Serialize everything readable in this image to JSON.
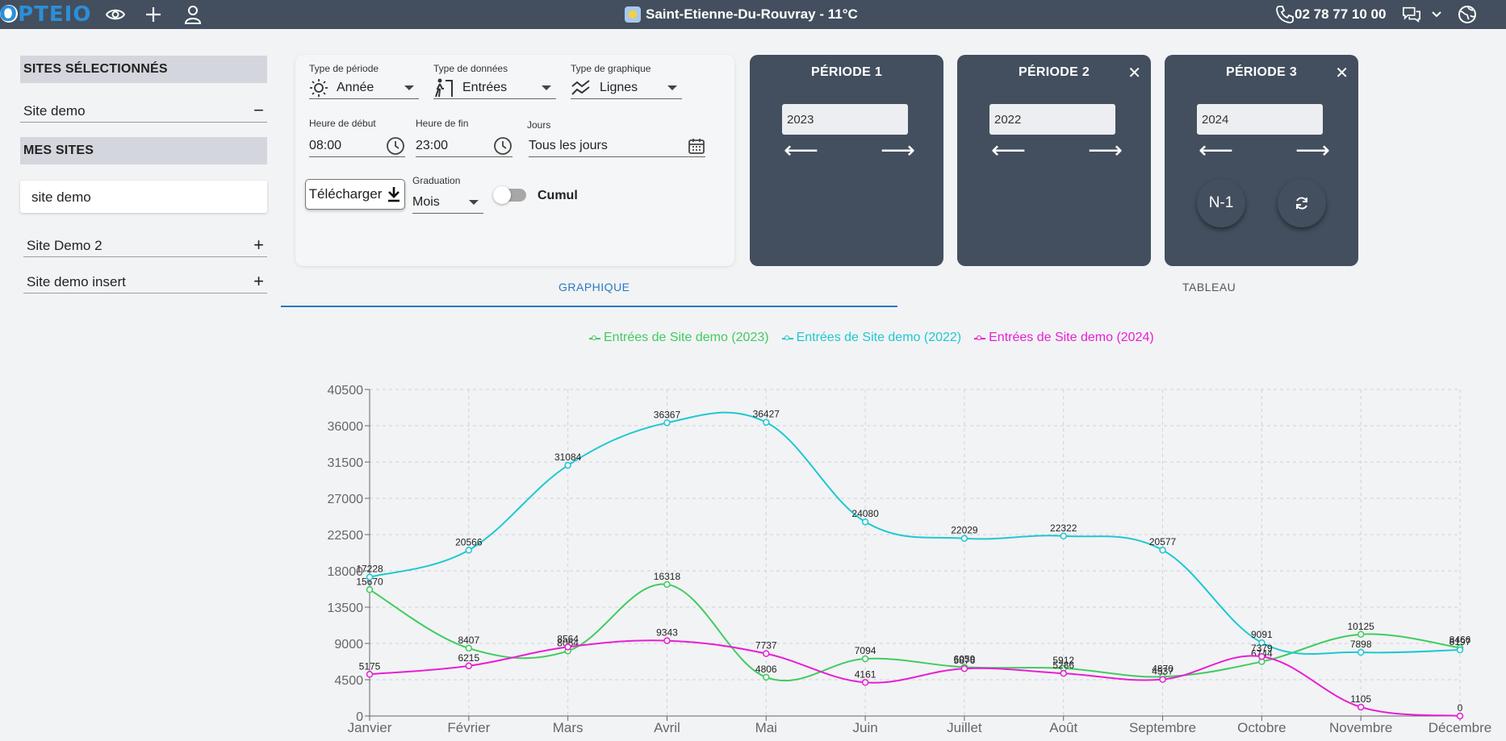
{
  "app": {
    "logo_text": "OPTEIO",
    "location": "Saint-Etienne-Du-Rouvray - 11°C",
    "phone": "02 78 77 10 00"
  },
  "topbar_icons": [
    "eye-icon",
    "plus-icon",
    "user-icon",
    "phone-icon",
    "chat-icon",
    "chevron-down-icon",
    "globe-icon"
  ],
  "sidebar": {
    "selected_title": "SITES SÉLECTIONNÉS",
    "selected_sites": [
      {
        "label": "Site demo"
      }
    ],
    "my_sites_title": "MES SITES",
    "search_value": "site demo",
    "my_sites": [
      {
        "label": "Site Demo 2"
      },
      {
        "label": "Site demo insert"
      }
    ]
  },
  "options": {
    "period_type": {
      "label": "Type de période",
      "value": "Année"
    },
    "data_type": {
      "label": "Type de données",
      "value": "Entrées"
    },
    "chart_type": {
      "label": "Type de graphique",
      "value": "Lignes"
    },
    "start_hour": {
      "label": "Heure de début",
      "value": "08:00"
    },
    "end_hour": {
      "label": "Heure de fin",
      "value": "23:00"
    },
    "days": {
      "label": "Jours",
      "value": "Tous les jours"
    },
    "download_label": "Télécharger",
    "graduation": {
      "label": "Graduation",
      "value": "Mois"
    },
    "cumul_label": "Cumul",
    "cumul_on": false
  },
  "periods": [
    {
      "title": "PÉRIODE 1",
      "year": "2023"
    },
    {
      "title": "PÉRIODE 2",
      "year": "2022"
    },
    {
      "title": "PÉRIODE 3",
      "year": "2024"
    }
  ],
  "actions": {
    "n1_label": "N-1"
  },
  "tabs": [
    {
      "label": "GRAPHIQUE",
      "active": true
    },
    {
      "label": "TABLEAU",
      "active": false
    }
  ],
  "colors": {
    "accent": "#2b78c4",
    "dark": "#434f5e",
    "s2023": "#3fcc5f",
    "s2022": "#1fc8d1",
    "s2024": "#e81ed3"
  },
  "chart_data": {
    "type": "line",
    "categories": [
      "Janvier",
      "Février",
      "Mars",
      "Avril",
      "Mai",
      "Juin",
      "Juillet",
      "Août",
      "Septembre",
      "Octobre",
      "Novembre",
      "Décembre"
    ],
    "series": [
      {
        "name": "Entrées de Site demo (2023)",
        "color": "#3fcc5f",
        "values": [
          15670,
          8407,
          8064,
          16318,
          4806,
          7094,
          6059,
          5912,
          4870,
          6744,
          10125,
          8466
        ]
      },
      {
        "name": "Entrées de Site demo (2022)",
        "color": "#1fc8d1",
        "values": [
          17228,
          20566,
          31084,
          36367,
          36427,
          24080,
          22029,
          22322,
          20577,
          9091,
          7898,
          8197
        ]
      },
      {
        "name": "Entrées de Site demo (2024)",
        "color": "#e81ed3",
        "values": [
          5175,
          6215,
          8564,
          9343,
          7737,
          4161,
          5876,
          5286,
          4537,
          7379,
          1105,
          0
        ]
      }
    ],
    "ylim": [
      0,
      40500
    ],
    "yticks": [
      0,
      4500,
      9000,
      13500,
      18000,
      22500,
      27000,
      31500,
      36000,
      40500
    ],
    "grid": true,
    "legend_position": "top"
  }
}
